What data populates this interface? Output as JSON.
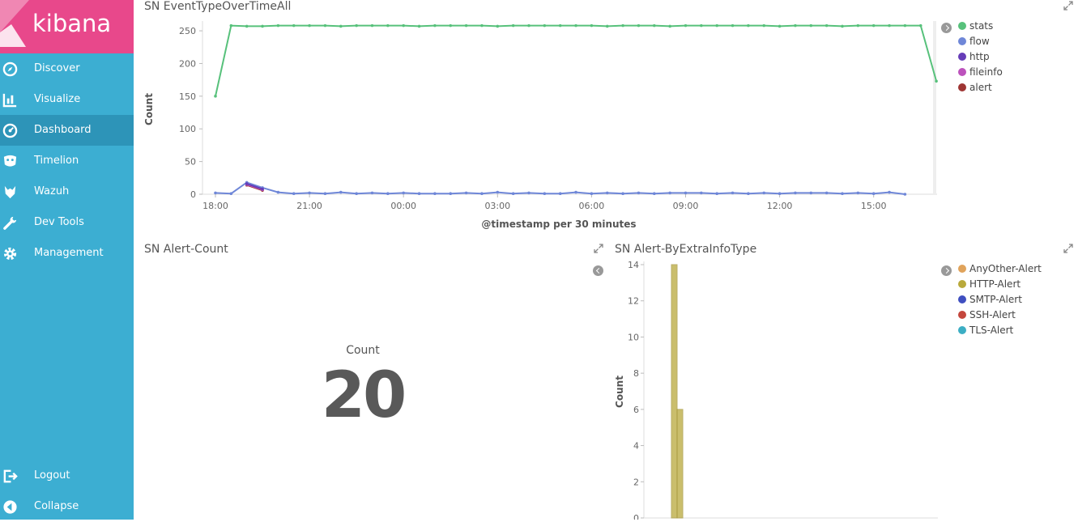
{
  "app": {
    "name": "kibana"
  },
  "nav": {
    "items": [
      {
        "label": "Discover",
        "icon": "compass-icon"
      },
      {
        "label": "Visualize",
        "icon": "bar-chart-icon"
      },
      {
        "label": "Dashboard",
        "icon": "dashboard-gauge-icon",
        "active": true
      },
      {
        "label": "Timelion",
        "icon": "timelion-icon"
      },
      {
        "label": "Wazuh",
        "icon": "wazuh-icon"
      },
      {
        "label": "Dev Tools",
        "icon": "wrench-icon"
      },
      {
        "label": "Management",
        "icon": "gear-icon"
      }
    ],
    "bottom": [
      {
        "label": "Logout",
        "icon": "logout-icon"
      },
      {
        "label": "Collapse",
        "icon": "collapse-icon"
      }
    ]
  },
  "panels": {
    "event_type": {
      "title": "SN EventTypeOverTimeAll"
    },
    "alert_count": {
      "title": "SN Alert-Count",
      "metric_label": "Count",
      "metric_value": "20"
    },
    "alert_extra": {
      "title": "SN Alert-ByExtraInfoType"
    }
  },
  "colors": {
    "stats": "#57c17b",
    "flow": "#6f87d8",
    "http": "#663db8",
    "fileinfo": "#bc52bc",
    "alert": "#9e3533",
    "AnyOther-Alert": "#e0a35b",
    "HTTP-Alert": "#b9a93b",
    "SMTP-Alert": "#3f4fc0",
    "SSH-Alert": "#c4473d",
    "TLS-Alert": "#3caec4"
  },
  "chart_data": [
    {
      "type": "line",
      "title": "",
      "xlabel": "@timestamp per 30 minutes",
      "ylabel": "Count",
      "ylim": [
        0,
        260
      ],
      "yticks": [
        0,
        50,
        100,
        150,
        200,
        250
      ],
      "x_tick_labels": [
        "18:00",
        "21:00",
        "00:00",
        "03:00",
        "06:00",
        "09:00",
        "12:00",
        "15:00"
      ],
      "x_tick_index": [
        0,
        6,
        12,
        18,
        24,
        30,
        36,
        42
      ],
      "legend_position": "right",
      "series": [
        {
          "name": "stats",
          "values": [
            150,
            258,
            257,
            257,
            258,
            258,
            258,
            258,
            257,
            258,
            258,
            258,
            258,
            257,
            258,
            258,
            258,
            258,
            257,
            258,
            258,
            258,
            258,
            258,
            258,
            257,
            258,
            258,
            258,
            257,
            258,
            258,
            258,
            258,
            258,
            258,
            257,
            258,
            258,
            258,
            257,
            258,
            258,
            258,
            258,
            258,
            173
          ]
        },
        {
          "name": "flow",
          "values": [
            2,
            1,
            18,
            10,
            3,
            1,
            2,
            1,
            3,
            1,
            2,
            1,
            2,
            1,
            1,
            1,
            2,
            1,
            3,
            1,
            2,
            1,
            1,
            3,
            1,
            2,
            1,
            2,
            1,
            2,
            2,
            2,
            1,
            2,
            1,
            2,
            1,
            2,
            2,
            2,
            1,
            2,
            1,
            3,
            0
          ]
        },
        {
          "name": "http",
          "index_start": 2,
          "values": [
            16,
            8
          ]
        },
        {
          "name": "fileinfo",
          "index_start": 2,
          "values": [
            15,
            7
          ]
        },
        {
          "name": "alert",
          "index_start": 2,
          "values": [
            14,
            6
          ]
        }
      ]
    },
    {
      "type": "metric",
      "label": "Count",
      "value": 20
    },
    {
      "type": "bar",
      "title": "",
      "xlabel": "",
      "ylabel": "Count",
      "ylim": [
        0,
        14
      ],
      "yticks": [
        0,
        2,
        4,
        6,
        8,
        10,
        12,
        14
      ],
      "legend_position": "right",
      "legend": [
        "AnyOther-Alert",
        "HTTP-Alert",
        "SMTP-Alert",
        "SSH-Alert",
        "TLS-Alert"
      ],
      "bars": [
        {
          "series": "HTTP-Alert",
          "bucket": 0,
          "value": 14
        },
        {
          "series": "HTTP-Alert",
          "bucket": 1,
          "value": 6
        }
      ]
    }
  ]
}
